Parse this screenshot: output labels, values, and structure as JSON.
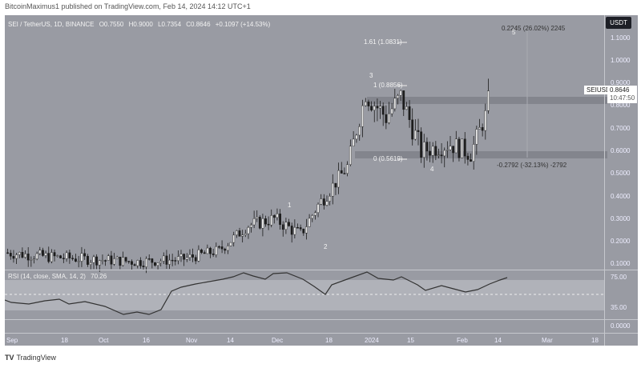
{
  "publisher_line": "BitcoinMaximus1 published on TradingView.com, Feb 14, 2024 14:12 UTC+1",
  "legend": {
    "symbol": "SEI / TetherUS, 1D, BINANCE",
    "open": "O0.7550",
    "high": "H0.9000",
    "low": "L0.7354",
    "close": "C0.8646",
    "change": "+0.1097 (+14.53%)"
  },
  "price_axis": {
    "currency_button": "USDT",
    "ticks": [
      "1.1000",
      "1.0000",
      "0.9000",
      "0.8000",
      "0.7000",
      "0.6000",
      "0.5000",
      "0.4000",
      "0.3000",
      "0.2000",
      "0.1000"
    ],
    "last_price_symbol": "SEIUSDT",
    "last_price": "0.8646",
    "countdown": "10:47:50"
  },
  "rsi": {
    "label": "RSI (14, close, SMA, 14, 2)",
    "value": "70.26",
    "ticks": [
      "75.00",
      "35.00",
      "0.0000"
    ]
  },
  "time_axis": [
    "Sep",
    "18",
    "Oct",
    "16",
    "Nov",
    "14",
    "Dec",
    "18",
    "2024",
    "15",
    "Feb",
    "14",
    "Mar",
    "18"
  ],
  "annotations": {
    "fib_161": "1.61 (1.0831)",
    "fib_1": "1 (0.8856)",
    "fib_0": "0 (0.5619)",
    "measure_up": "0.2245 (26.02%) 2245",
    "measure_down": "-0.2792 (-32.13%) -2792",
    "wave_1": "1",
    "wave_2": "2",
    "wave_3": "3",
    "wave_4": "4",
    "wave_5": "5"
  },
  "footer": {
    "brand": "TradingView",
    "logo": "TV"
  },
  "colors": {
    "background": "#999ba3",
    "candle_up": "#e6e6e6",
    "candle_down": "#1c1c1c",
    "zone": "#7c7e86",
    "rsi_band": "#b0b2b9",
    "rsi_line": "#333333"
  },
  "chart_data": {
    "type": "candlestick",
    "title": "SEI / TetherUS, 1D, BINANCE",
    "xlabel": "",
    "ylabel": "USDT",
    "ylim": [
      0.07,
      1.17
    ],
    "x_ticks": [
      "Sep",
      "18",
      "Oct",
      "16",
      "Nov",
      "14",
      "Dec",
      "18",
      "2024",
      "15",
      "Feb",
      "14",
      "Mar",
      "18"
    ],
    "approx_close_path": [
      {
        "date": "Sep 1",
        "close": 0.15
      },
      {
        "date": "Sep 18",
        "close": 0.13
      },
      {
        "date": "Oct 1",
        "close": 0.12
      },
      {
        "date": "Oct 16",
        "close": 0.11
      },
      {
        "date": "Nov 1",
        "close": 0.12
      },
      {
        "date": "Nov 14",
        "close": 0.16
      },
      {
        "date": "Nov 24",
        "close": 0.27
      },
      {
        "date": "Dec 3",
        "close": 0.3
      },
      {
        "date": "Dec 12",
        "close": 0.23
      },
      {
        "date": "Dec 18",
        "close": 0.36
      },
      {
        "date": "Dec 28",
        "close": 0.53
      },
      {
        "date": "Jan 3",
        "close": 0.85
      },
      {
        "date": "Jan 10",
        "close": 0.75
      },
      {
        "date": "Jan 15",
        "close": 0.84
      },
      {
        "date": "Jan 22",
        "close": 0.6
      },
      {
        "date": "Feb 1",
        "close": 0.63
      },
      {
        "date": "Feb 8",
        "close": 0.59
      },
      {
        "date": "Feb 13",
        "close": 0.755
      },
      {
        "date": "Feb 14",
        "close": 0.8646
      }
    ],
    "last_candle": {
      "open": 0.755,
      "high": 0.9,
      "low": 0.7354,
      "close": 0.8646,
      "change": 0.1097,
      "change_pct": 14.53
    },
    "horizontal_zones": [
      {
        "name": "resistance",
        "price": 0.83
      },
      {
        "name": "support",
        "price": 0.59
      }
    ],
    "fibonacci": [
      {
        "level": 1.61,
        "price": 1.0831
      },
      {
        "level": 1,
        "price": 0.8856
      },
      {
        "level": 0,
        "price": 0.5619
      }
    ],
    "measurements": [
      {
        "delta": 0.2245,
        "pct": 26.02
      },
      {
        "delta": -0.2792,
        "pct": -32.13
      }
    ],
    "wave_labels": [
      "1",
      "2",
      "3",
      "4",
      "5"
    ],
    "indicator": {
      "name": "RSI (14, close, SMA, 14, 2)",
      "current": 70.26,
      "band": [
        35,
        75
      ],
      "midline": 50
    }
  }
}
